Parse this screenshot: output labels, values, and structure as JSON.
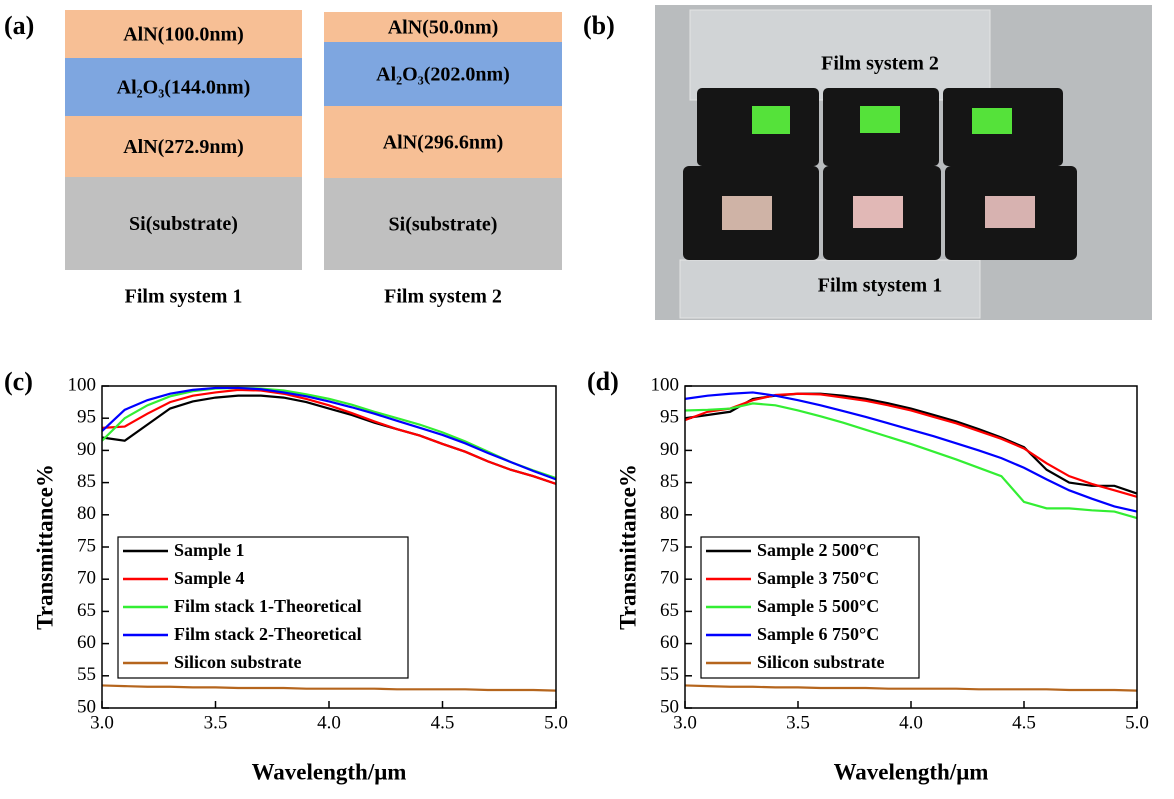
{
  "panel_a": {
    "label": "(a)",
    "stacks": [
      {
        "name": "Film system 1",
        "layers": [
          {
            "text": "AlN(100.0nm)",
            "color": "#f7bf95"
          },
          {
            "text": "Al₂O₃(144.0nm)",
            "color": "#7ea6e0"
          },
          {
            "text": "AlN(272.9nm)",
            "color": "#f7bf95"
          },
          {
            "text": "Si(substrate)",
            "color": "#c0c0c0"
          }
        ]
      },
      {
        "name": "Film system 2",
        "layers": [
          {
            "text": "AlN(50.0nm)",
            "color": "#f7bf95"
          },
          {
            "text": "Al₂O₃(202.0nm)",
            "color": "#7ea6e0"
          },
          {
            "text": "AlN(296.6nm)",
            "color": "#f7bf95"
          },
          {
            "text": "Si(substrate)",
            "color": "#c0c0c0"
          }
        ]
      }
    ]
  },
  "panel_b": {
    "label": "(b)",
    "annotations": [
      "Film system 2",
      "Film stystem 1"
    ]
  },
  "chart_data": [
    {
      "type": "line",
      "label": "(c)",
      "x_label": "Wavelength/μm",
      "y_label": "Transmittance%",
      "x": [
        3.0,
        3.1,
        3.2,
        3.3,
        3.4,
        3.5,
        3.6,
        3.7,
        3.8,
        3.9,
        4.0,
        4.1,
        4.2,
        4.3,
        4.4,
        4.5,
        4.6,
        4.7,
        4.8,
        4.9,
        5.0
      ],
      "xlim": [
        3,
        5
      ],
      "ylim": [
        50,
        100
      ],
      "xticks": [
        {
          "value": 3,
          "label": "3.0"
        },
        {
          "value": 3.5,
          "label": "3.5"
        },
        {
          "value": 4,
          "label": "4.0"
        },
        {
          "value": 4.5,
          "label": "4.5"
        },
        {
          "value": 5,
          "label": "5.0"
        }
      ],
      "yticks": [
        50,
        55,
        60,
        65,
        70,
        75,
        80,
        85,
        90,
        95,
        100
      ],
      "legend": "lower left",
      "series": [
        {
          "name": "Sample 1",
          "color": "#000000",
          "values": [
            92,
            91.5,
            94,
            96.5,
            97.6,
            98.2,
            98.5,
            98.5,
            98.2,
            97.5,
            96.5,
            95.5,
            94.3,
            93.3,
            92.3,
            91,
            89.8,
            88.3,
            87,
            86,
            84.8
          ]
        },
        {
          "name": "Sample 4",
          "color": "#ff0000",
          "values": [
            93.5,
            93.7,
            95.7,
            97.5,
            98.5,
            99,
            99.4,
            99.3,
            98.8,
            98,
            97,
            95.8,
            94.5,
            93.3,
            92.3,
            91,
            89.8,
            88.3,
            87,
            86,
            84.8
          ]
        },
        {
          "name": "Film stack 1-Theoretical",
          "color": "#33ee33",
          "values": [
            91.5,
            95,
            97,
            98.4,
            99.2,
            99.6,
            99.7,
            99.6,
            99.3,
            98.7,
            98,
            97.1,
            96,
            95,
            94,
            92.8,
            91.4,
            89.8,
            88.2,
            86.9,
            85.7
          ]
        },
        {
          "name": "Film stack 2-Theoretical",
          "color": "#0000ff",
          "values": [
            93,
            96.3,
            97.8,
            98.8,
            99.4,
            99.7,
            99.7,
            99.5,
            99,
            98.4,
            97.6,
            96.7,
            95.7,
            94.6,
            93.5,
            92.4,
            91.1,
            89.6,
            88.2,
            86.8,
            85.5
          ]
        },
        {
          "name": "Silicon substrate",
          "color": "#b5651d",
          "values": [
            53.5,
            53.4,
            53.3,
            53.3,
            53.2,
            53.2,
            53.1,
            53.1,
            53.1,
            53,
            53,
            53,
            53,
            52.9,
            52.9,
            52.9,
            52.9,
            52.8,
            52.8,
            52.8,
            52.7
          ]
        }
      ]
    },
    {
      "type": "line",
      "label": "(d)",
      "x_label": "Wavelength/μm",
      "y_label": "Transmittance%",
      "x": [
        3.0,
        3.1,
        3.2,
        3.3,
        3.4,
        3.5,
        3.6,
        3.7,
        3.8,
        3.9,
        4.0,
        4.1,
        4.2,
        4.3,
        4.4,
        4.5,
        4.6,
        4.7,
        4.8,
        4.9,
        5.0
      ],
      "xlim": [
        3,
        5
      ],
      "ylim": [
        50,
        100
      ],
      "xticks": [
        {
          "value": 3,
          "label": "3.0"
        },
        {
          "value": 3.5,
          "label": "3.5"
        },
        {
          "value": 4,
          "label": "4.0"
        },
        {
          "value": 4.5,
          "label": "4.5"
        },
        {
          "value": 5,
          "label": "5.0"
        }
      ],
      "yticks": [
        50,
        55,
        60,
        65,
        70,
        75,
        80,
        85,
        90,
        95,
        100
      ],
      "legend": "lower left",
      "series": [
        {
          "name": "Sample 2 500°C",
          "color": "#000000",
          "values": [
            95,
            95.5,
            96,
            98,
            98.5,
            98.8,
            98.8,
            98.5,
            98,
            97.3,
            96.5,
            95.5,
            94.5,
            93.3,
            92,
            90.5,
            87,
            85,
            84.5,
            84.5,
            83.3
          ]
        },
        {
          "name": "Sample 3 750°C",
          "color": "#ff0000",
          "values": [
            94.7,
            96,
            96.5,
            97.8,
            98.6,
            98.8,
            98.7,
            98.2,
            97.7,
            97,
            96.2,
            95.2,
            94.2,
            93,
            91.8,
            90.3,
            88,
            86,
            84.8,
            83.8,
            82.8
          ]
        },
        {
          "name": "Sample 5 500°C",
          "color": "#33ee33",
          "values": [
            96.2,
            96.3,
            96.5,
            97.3,
            97,
            96.2,
            95.3,
            94.3,
            93.2,
            92.1,
            91,
            89.8,
            88.6,
            87.3,
            86,
            82,
            81,
            81,
            80.7,
            80.5,
            79.5
          ]
        },
        {
          "name": "Sample 6 750°C",
          "color": "#0000ff",
          "values": [
            98,
            98.5,
            98.8,
            99,
            98.5,
            97.8,
            97,
            96.1,
            95.2,
            94.2,
            93.2,
            92.2,
            91.1,
            90,
            88.8,
            87.3,
            85.5,
            83.8,
            82.5,
            81.3,
            80.5
          ]
        },
        {
          "name": "Silicon substrate",
          "color": "#b5651d",
          "values": [
            53.5,
            53.4,
            53.3,
            53.3,
            53.2,
            53.2,
            53.1,
            53.1,
            53.1,
            53,
            53,
            53,
            53,
            52.9,
            52.9,
            52.9,
            52.9,
            52.8,
            52.8,
            52.8,
            52.7
          ]
        }
      ]
    }
  ]
}
